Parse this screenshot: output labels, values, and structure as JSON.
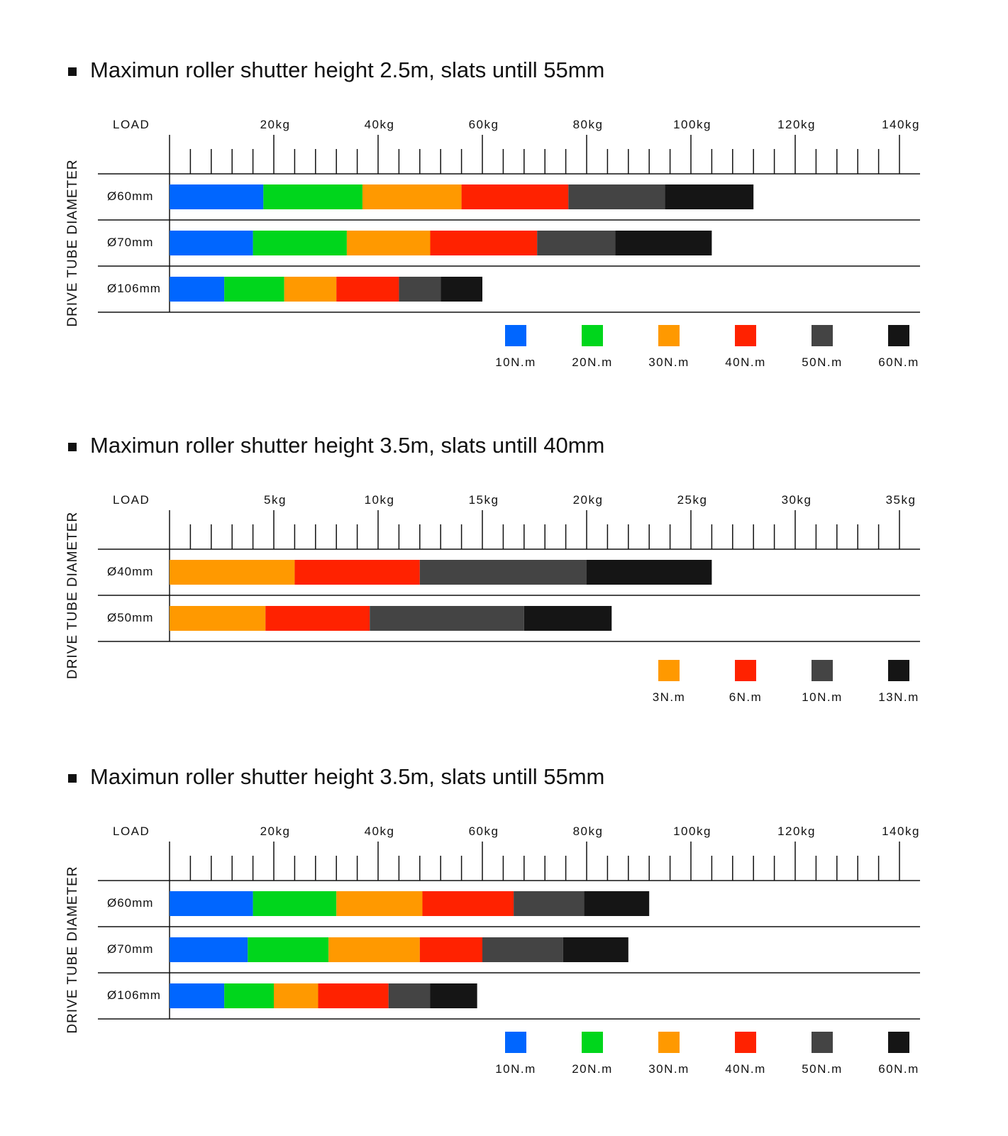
{
  "chart_data": [
    {
      "type": "bar",
      "stacked": true,
      "orientation": "horizontal",
      "title": "Maximun roller shutter height 2.5m, slats untill 55mm",
      "xlabel": "LOAD",
      "ylabel": "DRIVE TUBE DIAMETER",
      "categories": [
        "Ø60mm",
        "Ø70mm",
        "Ø106mm"
      ],
      "xlim": [
        0,
        140
      ],
      "xticks": [
        {
          "value": 20,
          "label": "20kg"
        },
        {
          "value": 40,
          "label": "40kg"
        },
        {
          "value": 60,
          "label": "60kg"
        },
        {
          "value": 80,
          "label": "80kg"
        },
        {
          "value": 100,
          "label": "100kg"
        },
        {
          "value": 120,
          "label": "120kg"
        },
        {
          "value": 140,
          "label": "140kg"
        }
      ],
      "xminorticks": [
        4,
        8,
        12,
        16,
        24,
        28,
        32,
        36,
        44,
        48,
        52,
        56,
        64,
        68,
        72,
        76,
        84,
        88,
        92,
        96,
        104,
        108,
        112,
        116,
        124,
        128,
        132,
        136
      ],
      "series": [
        {
          "name": "10N.m",
          "color": "#0066ff",
          "values": [
            18,
            16,
            10.5
          ]
        },
        {
          "name": "20N.m",
          "color": "#00d61c",
          "values": [
            19,
            18,
            11.5
          ]
        },
        {
          "name": "30N.m",
          "color": "#ff9900",
          "values": [
            19,
            16,
            10
          ]
        },
        {
          "name": "40N.m",
          "color": "#ff2200",
          "values": [
            20.5,
            20.5,
            12
          ]
        },
        {
          "name": "50N.m",
          "color": "#444444",
          "values": [
            18.5,
            15,
            8
          ]
        },
        {
          "name": "60N.m",
          "color": "#151515",
          "values": [
            17,
            18.5,
            8
          ]
        }
      ]
    },
    {
      "type": "bar",
      "stacked": true,
      "orientation": "horizontal",
      "title": "Maximun roller shutter height 3.5m, slats untill 40mm",
      "xlabel": "LOAD",
      "ylabel": "DRIVE TUBE DIAMETER",
      "categories": [
        "Ø40mm",
        "Ø50mm"
      ],
      "xlim": [
        0,
        35
      ],
      "xticks": [
        {
          "value": 5,
          "label": "5kg"
        },
        {
          "value": 10,
          "label": "10kg"
        },
        {
          "value": 15,
          "label": "15kg"
        },
        {
          "value": 20,
          "label": "20kg"
        },
        {
          "value": 25,
          "label": "25kg"
        },
        {
          "value": 30,
          "label": "30kg"
        },
        {
          "value": 35,
          "label": "35kg"
        }
      ],
      "xminorticks": [
        1,
        2,
        3,
        4,
        6,
        7,
        8,
        9,
        11,
        12,
        13,
        14,
        16,
        17,
        18,
        19,
        21,
        22,
        23,
        24,
        26,
        27,
        28,
        29,
        31,
        32,
        33,
        34
      ],
      "series": [
        {
          "name": "3N.m",
          "color": "#ff9900",
          "values": [
            6,
            4.6
          ]
        },
        {
          "name": "6N.m",
          "color": "#ff2200",
          "values": [
            6,
            5
          ]
        },
        {
          "name": "10N.m",
          "color": "#444444",
          "values": [
            8,
            7.4
          ]
        },
        {
          "name": "13N.m",
          "color": "#151515",
          "values": [
            6,
            4.2
          ]
        }
      ]
    },
    {
      "type": "bar",
      "stacked": true,
      "orientation": "horizontal",
      "title": "Maximun roller shutter height 3.5m, slats untill 55mm",
      "xlabel": "LOAD",
      "ylabel": "DRIVE TUBE DIAMETER",
      "categories": [
        "Ø60mm",
        "Ø70mm",
        "Ø106mm"
      ],
      "xlim": [
        0,
        140
      ],
      "xticks": [
        {
          "value": 20,
          "label": "20kg"
        },
        {
          "value": 40,
          "label": "40kg"
        },
        {
          "value": 60,
          "label": "60kg"
        },
        {
          "value": 80,
          "label": "80kg"
        },
        {
          "value": 100,
          "label": "100kg"
        },
        {
          "value": 120,
          "label": "120kg"
        },
        {
          "value": 140,
          "label": "140kg"
        }
      ],
      "xminorticks": [
        4,
        8,
        12,
        16,
        24,
        28,
        32,
        36,
        44,
        48,
        52,
        56,
        64,
        68,
        72,
        76,
        84,
        88,
        92,
        96,
        104,
        108,
        112,
        116,
        124,
        128,
        132,
        136
      ],
      "series": [
        {
          "name": "10N.m",
          "color": "#0066ff",
          "values": [
            16,
            15,
            10.5
          ]
        },
        {
          "name": "20N.m",
          "color": "#00d61c",
          "values": [
            16,
            15.5,
            9.5
          ]
        },
        {
          "name": "30N.m",
          "color": "#ff9900",
          "values": [
            16.5,
            17.5,
            8.5
          ]
        },
        {
          "name": "40N.m",
          "color": "#ff2200",
          "values": [
            17.5,
            12,
            13.5
          ]
        },
        {
          "name": "50N.m",
          "color": "#444444",
          "values": [
            13.5,
            15.5,
            8
          ]
        },
        {
          "name": "60N.m",
          "color": "#151515",
          "values": [
            12.5,
            12.5,
            9
          ]
        }
      ]
    }
  ]
}
